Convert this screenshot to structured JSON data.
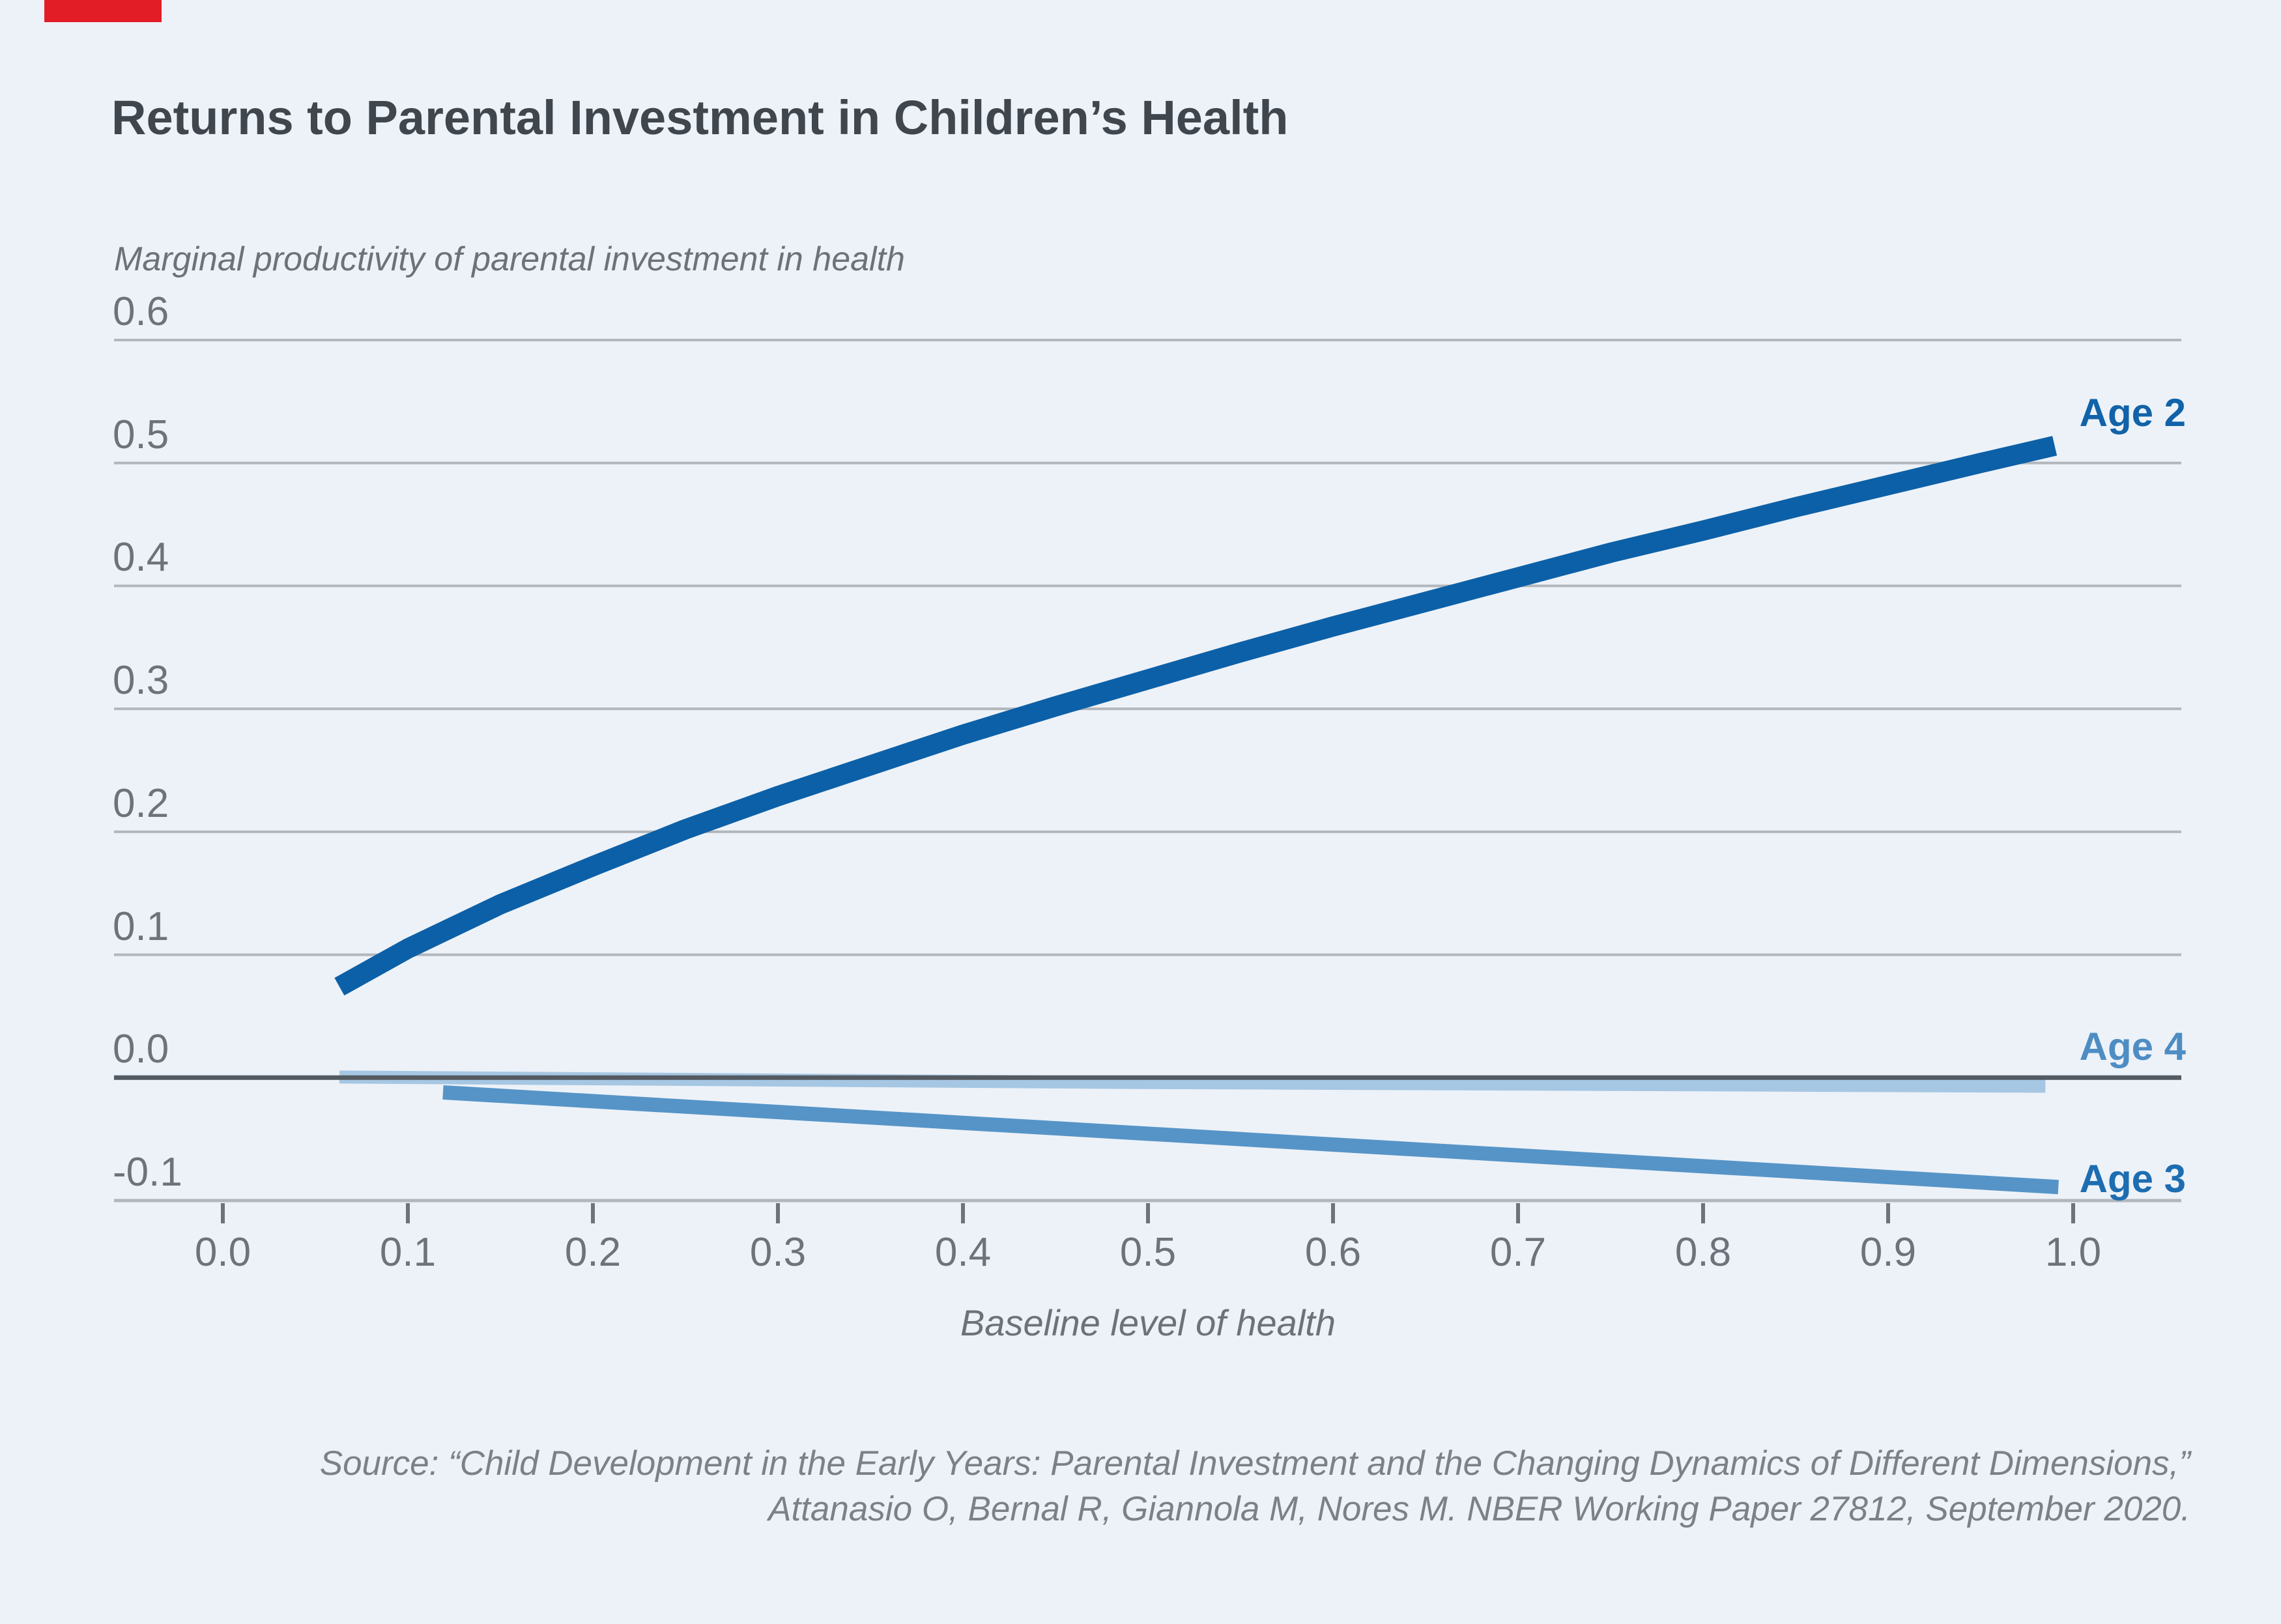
{
  "title": "Returns to Parental Investment in Children’s Health",
  "accent_color": "#e21d25",
  "background_color": "#edf2f8",
  "source": {
    "line1": "Source: “Child Development in the Early Years: Parental Investment and the Changing Dynamics of Different Dimensions,”",
    "line2": "Attanasio O, Bernal R, Giannola M, Nores M. NBER Working Paper 27812, September 2020."
  },
  "chart_data": {
    "type": "line",
    "title": "Returns to Parental Investment in Children’s Health",
    "xlabel": "Baseline level of health",
    "ylabel": "Marginal productivity of parental investment in health",
    "xlim": [
      0,
      1
    ],
    "ylim": [
      -0.1,
      0.6
    ],
    "xticks": [
      "0.0",
      "0.1",
      "0.2",
      "0.3",
      "0.4",
      "0.5",
      "0.6",
      "0.7",
      "0.8",
      "0.9",
      "1.0"
    ],
    "yticks": [
      "0.6",
      "0.5",
      "0.4",
      "0.3",
      "0.2",
      "0.1",
      "0.0",
      "-0.1"
    ],
    "grid": "horizontal",
    "zero_line": true,
    "legend_position": "right-of-line-ends",
    "colors": {
      "gridline": "#b2b7bc",
      "zero_line": "#545a61",
      "axis_line": "#b2b7bc",
      "tick_mark": "#6d737a",
      "tick_label": "#6d737a"
    },
    "series": [
      {
        "name": "Age 2",
        "color": "#0c60a7",
        "label_color": "#1063a9",
        "points": [
          [
            0.063,
            0.074
          ],
          [
            0.1,
            0.105
          ],
          [
            0.15,
            0.141
          ],
          [
            0.2,
            0.172
          ],
          [
            0.25,
            0.202
          ],
          [
            0.3,
            0.229
          ],
          [
            0.35,
            0.254
          ],
          [
            0.4,
            0.279
          ],
          [
            0.45,
            0.302
          ],
          [
            0.5,
            0.324
          ],
          [
            0.55,
            0.346
          ],
          [
            0.6,
            0.367
          ],
          [
            0.65,
            0.387
          ],
          [
            0.7,
            0.407
          ],
          [
            0.75,
            0.427
          ],
          [
            0.8,
            0.445
          ],
          [
            0.85,
            0.464
          ],
          [
            0.9,
            0.482
          ],
          [
            0.95,
            0.5
          ],
          [
            0.99,
            0.514
          ]
        ]
      },
      {
        "name": "Age 3",
        "color": "#5694c7",
        "label_color": "#1d6db1",
        "points": [
          [
            0.119,
            -0.012
          ],
          [
            0.992,
            -0.089
          ]
        ]
      },
      {
        "name": "Age 4",
        "color": "#a6c7e3",
        "label_color": "#4e8dc3",
        "points": [
          [
            0.063,
            0.0005
          ],
          [
            0.5,
            -0.004
          ],
          [
            0.985,
            -0.007
          ]
        ]
      }
    ]
  }
}
